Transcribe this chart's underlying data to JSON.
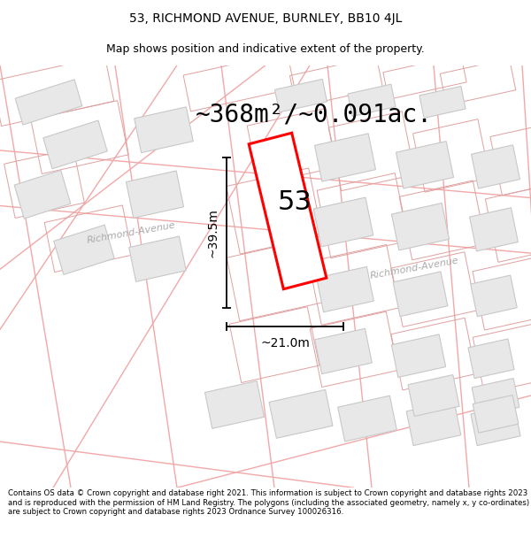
{
  "title": "53, RICHMOND AVENUE, BURNLEY, BB10 4JL",
  "subtitle": "Map shows position and indicative extent of the property.",
  "area_text": "~368m²/~0.091ac.",
  "dim_vertical": "~39.5m",
  "dim_horizontal": "~21.0m",
  "property_number": "53",
  "street_label1": "Richmond-Avenue",
  "street_label2": "Richmond-Avenue",
  "footer": "Contains OS data © Crown copyright and database right 2021. This information is subject to Crown copyright and database rights 2023 and is reproduced with the permission of HM Land Registry. The polygons (including the associated geometry, namely x, y co-ordinates) are subject to Crown copyright and database rights 2023 Ordnance Survey 100026316.",
  "map_bg": "#ffffff",
  "road_color": "#f2a8a8",
  "building_fill": "#e8e8e8",
  "building_stroke": "#c8c8c8",
  "plot_stroke": "#e0a0a0",
  "property_color": "#ff0000",
  "title_fontsize": 10,
  "subtitle_fontsize": 9,
  "area_fontsize": 20,
  "street_fontsize": 8,
  "footer_fontsize": 6.2,
  "map_rot": 12
}
